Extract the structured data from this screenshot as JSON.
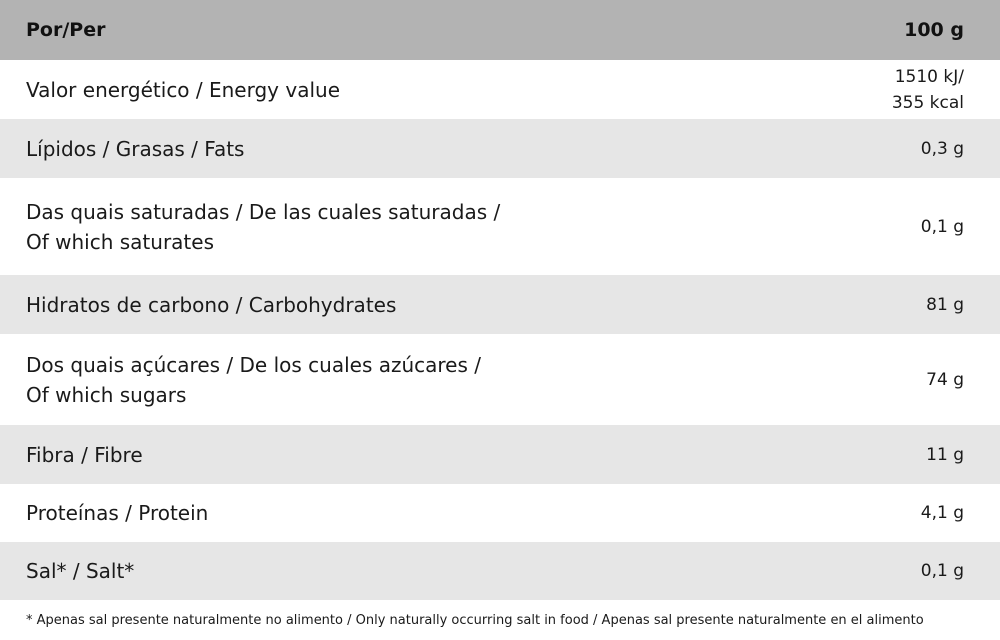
{
  "header": {
    "label": "Por/Per",
    "value": "100 g"
  },
  "rows": [
    {
      "label": "Valor energético / Energy value",
      "value": "1510 kJ/\n355 kcal"
    },
    {
      "label": "Lípidos / Grasas / Fats",
      "value": "0,3 g"
    },
    {
      "label": "Das quais saturadas / De las cuales saturadas /\nOf which saturates",
      "value": "0,1 g"
    },
    {
      "label": "Hidratos de carbono / Carbohydrates",
      "value": "81 g"
    },
    {
      "label": "Dos quais açúcares / De los cuales azúcares /\nOf which sugars",
      "value": "74 g"
    },
    {
      "label": "Fibra / Fibre",
      "value": "11 g"
    },
    {
      "label": "Proteínas / Protein",
      "value": "4,1 g"
    },
    {
      "label": "Sal* / Salt*",
      "value": "0,1 g"
    }
  ],
  "footnote": "* Apenas sal presente naturalmente no alimento / Only naturally occurring salt in food / Apenas sal presente naturalmente en el alimento",
  "colors": {
    "header_bg": "#b3b3b3",
    "stripe_bg": "#e6e6e6"
  }
}
